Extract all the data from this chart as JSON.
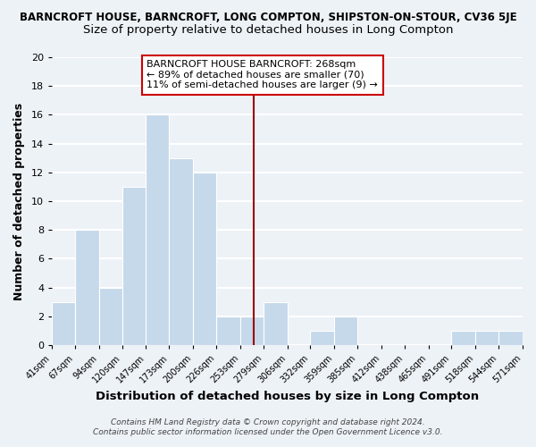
{
  "title": "BARNCROFT HOUSE, BARNCROFT, LONG COMPTON, SHIPSTON-ON-STOUR, CV36 5JE",
  "subtitle": "Size of property relative to detached houses in Long Compton",
  "xlabel": "Distribution of detached houses by size in Long Compton",
  "ylabel": "Number of detached properties",
  "bar_edges": [
    41,
    67,
    94,
    120,
    147,
    173,
    200,
    226,
    253,
    279,
    306,
    332,
    359,
    385,
    412,
    438,
    465,
    491,
    518,
    544,
    571
  ],
  "bar_heights": [
    3,
    8,
    4,
    11,
    16,
    13,
    12,
    2,
    2,
    3,
    0,
    1,
    2,
    0,
    0,
    0,
    0,
    1,
    1,
    1
  ],
  "bar_color": "#c6d9ea",
  "bar_edge_color": "#ffffff",
  "reference_line_x": 268,
  "reference_line_color": "#990000",
  "ylim": [
    0,
    20
  ],
  "xtick_labels": [
    "41sqm",
    "67sqm",
    "94sqm",
    "120sqm",
    "147sqm",
    "173sqm",
    "200sqm",
    "226sqm",
    "253sqm",
    "279sqm",
    "306sqm",
    "332sqm",
    "359sqm",
    "385sqm",
    "412sqm",
    "438sqm",
    "465sqm",
    "491sqm",
    "518sqm",
    "544sqm",
    "571sqm"
  ],
  "ytick_labels": [
    0,
    2,
    4,
    6,
    8,
    10,
    12,
    14,
    16,
    18,
    20
  ],
  "annotation_lines": [
    "BARNCROFT HOUSE BARNCROFT: 268sqm",
    "← 89% of detached houses are smaller (70)",
    "11% of semi-detached houses are larger (9) →"
  ],
  "footer_lines": [
    "Contains HM Land Registry data © Crown copyright and database right 2024.",
    "Contains public sector information licensed under the Open Government Licence v3.0."
  ],
  "background_color": "#edf2f7",
  "grid_color": "#ffffff",
  "title_fontsize": 8.5,
  "subtitle_fontsize": 9.5,
  "xlabel_fontsize": 9.5,
  "ylabel_fontsize": 9.0,
  "annot_fontsize": 8.0,
  "footer_fontsize": 6.5
}
